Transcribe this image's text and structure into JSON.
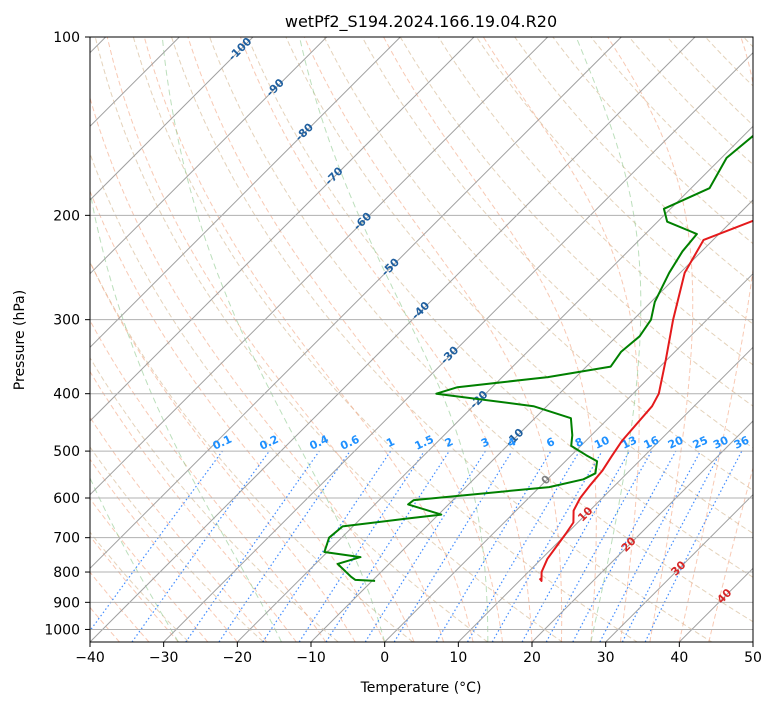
{
  "chart_data": {
    "type": "line",
    "subtype": "skew-t log-p",
    "title": "wetPf2_S194.2024.166.19.04.R20",
    "xlabel": "Temperature (°C)",
    "ylabel": "Pressure (hPa)",
    "xlim": [
      -40,
      50
    ],
    "ylim": [
      1050,
      100
    ],
    "y_scale": "log",
    "grid": true,
    "x_ticks": [
      -40,
      -30,
      -20,
      -10,
      0,
      10,
      20,
      30,
      40,
      50
    ],
    "y_ticks": [
      100,
      200,
      300,
      400,
      500,
      600,
      700,
      800,
      900,
      1000
    ],
    "background_lines": {
      "isotherms_solid_gray": true,
      "dry_adiabats_color": "#d2b48c",
      "moist_adiabats_color": "#f4a582",
      "mixing_ratio_color": "#1f77ff",
      "ice_lines_color": "#8fc98f"
    },
    "isotherm_labels": {
      "color": "#1f5f9f",
      "values": [
        "-100",
        "-90",
        "-80",
        "-70",
        "-60",
        "-50",
        "-40",
        "-30",
        "-20",
        "-10"
      ]
    },
    "mixing_ratio_labels": {
      "color": "#1e90ff",
      "values": [
        "0.1",
        "0.2",
        "0.4",
        "0.6",
        "1",
        "1.5",
        "2",
        "3",
        "4",
        "6",
        "8",
        "10",
        "13",
        "16",
        "20",
        "25",
        "30",
        "36"
      ]
    },
    "upper_isotherm_labels": {
      "values": [
        {
          "text": "0",
          "color": "#7f7f7f"
        },
        {
          "text": "10",
          "color": "#d62728"
        },
        {
          "text": "20",
          "color": "#d62728"
        },
        {
          "text": "30",
          "color": "#d62728"
        },
        {
          "text": "40",
          "color": "#d62728"
        }
      ]
    },
    "series": [
      {
        "name": "",
        "color": "#e41a1c",
        "points": [
          [
            12.4,
            820
          ],
          [
            13,
            828
          ],
          [
            11.8,
            800
          ],
          [
            10.8,
            760
          ],
          [
            10.3,
            720
          ],
          [
            9.9,
            690
          ],
          [
            9.4,
            660
          ],
          [
            7.8,
            630
          ],
          [
            7.0,
            600
          ],
          [
            6.6,
            570
          ],
          [
            6.3,
            540
          ],
          [
            5.6,
            510
          ],
          [
            4.9,
            480
          ],
          [
            4.6,
            450
          ],
          [
            4.3,
            420
          ],
          [
            3.5,
            400
          ],
          [
            -0.2,
            350
          ],
          [
            -4.6,
            300
          ],
          [
            -9.4,
            250
          ],
          [
            -11.3,
            220
          ],
          [
            -6,
            200
          ],
          [
            6.5,
            180
          ],
          [
            13.3,
            160
          ],
          [
            16.6,
            145
          ],
          [
            19.8,
            130
          ],
          [
            22.6,
            115
          ],
          [
            24.5,
            100
          ]
        ]
      },
      {
        "name": "",
        "color": "#008000",
        "points": [
          [
            -9.6,
            828
          ],
          [
            -12.4,
            825
          ],
          [
            -13.4,
            815
          ],
          [
            -17,
            775
          ],
          [
            -14.8,
            755
          ],
          [
            -20.4,
            740
          ],
          [
            -21.7,
            700
          ],
          [
            -21.4,
            670
          ],
          [
            -13.8,
            650
          ],
          [
            -9.6,
            640
          ],
          [
            -15.5,
            615
          ],
          [
            -15.3,
            605
          ],
          [
            1.3,
            575
          ],
          [
            4.9,
            558
          ],
          [
            5.7,
            545
          ],
          [
            4.3,
            520
          ],
          [
            2,
            508
          ],
          [
            -1.3,
            490
          ],
          [
            -2.6,
            470
          ],
          [
            -5.1,
            440
          ],
          [
            -11.8,
            420
          ],
          [
            -26.7,
            400
          ],
          [
            -24.7,
            390
          ],
          [
            -13.8,
            375
          ],
          [
            -6.7,
            360
          ],
          [
            -7.3,
            340
          ],
          [
            -6.9,
            320
          ],
          [
            -7.6,
            300
          ],
          [
            -9.5,
            280
          ],
          [
            -11.5,
            250
          ],
          [
            -12.6,
            230
          ],
          [
            -13,
            215
          ],
          [
            -18.7,
            205
          ],
          [
            -20.9,
            195
          ],
          [
            -17.5,
            180
          ],
          [
            -19.3,
            160
          ],
          [
            -18.6,
            145
          ],
          [
            -14.5,
            130
          ],
          [
            -9.9,
            115
          ],
          [
            -6.5,
            100
          ]
        ]
      }
    ]
  }
}
